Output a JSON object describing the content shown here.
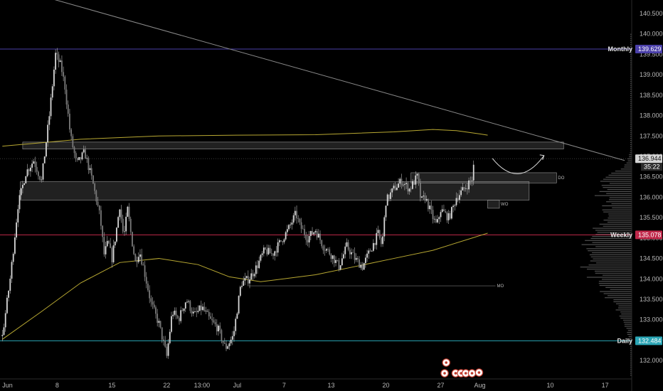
{
  "chart_data": {
    "type": "candlestick",
    "title": "",
    "y_axis": {
      "side": "right",
      "ylim": [
        131.55,
        140.83
      ],
      "ticks": [
        "140.500",
        "140.000",
        "139.500",
        "139.000",
        "138.500",
        "138.000",
        "137.500",
        "137.000",
        "136.500",
        "136.000",
        "135.500",
        "135.000",
        "134.500",
        "134.000",
        "133.500",
        "133.000",
        "132.500",
        "132.000"
      ]
    },
    "x_axis": {
      "ticks": [
        {
          "label": "Jun",
          "day": 0
        },
        {
          "label": "8",
          "day": 7
        },
        {
          "label": "15",
          "day": 14
        },
        {
          "label": "22",
          "day": 21
        },
        {
          "label": "13:00",
          "day": 25.5
        },
        {
          "label": "Jul",
          "day": 30
        },
        {
          "label": "7",
          "day": 36
        },
        {
          "label": "13",
          "day": 42
        },
        {
          "label": "20",
          "day": 49
        },
        {
          "label": "27",
          "day": 56
        },
        {
          "label": "Aug",
          "day": 61
        },
        {
          "label": "10",
          "day": 70
        },
        {
          "label": "17",
          "day": 77
        }
      ],
      "xlim": [
        -0.3,
        80.4
      ]
    },
    "price_path": [
      [
        0,
        132.6
      ],
      [
        1,
        134.0
      ],
      [
        2,
        135.8
      ],
      [
        3,
        136.6
      ],
      [
        4,
        136.9
      ],
      [
        5,
        136.4
      ],
      [
        6,
        138.0
      ],
      [
        6.8,
        139.5
      ],
      [
        7.5,
        139.2
      ],
      [
        8,
        138.7
      ],
      [
        8.7,
        137.5
      ],
      [
        9.5,
        136.8
      ],
      [
        10.5,
        137.1
      ],
      [
        11.5,
        136.4
      ],
      [
        12.5,
        135.5
      ],
      [
        13,
        134.6
      ],
      [
        13.5,
        134.9
      ],
      [
        14,
        134.5
      ],
      [
        14.5,
        135.1
      ],
      [
        15,
        135.8
      ],
      [
        15.5,
        135.0
      ],
      [
        16,
        135.7
      ],
      [
        16.5,
        135.0
      ],
      [
        17,
        134.4
      ],
      [
        17.5,
        134.7
      ],
      [
        18,
        134.3
      ],
      [
        19,
        133.4
      ],
      [
        20,
        132.9
      ],
      [
        21,
        132.1
      ],
      [
        21.7,
        133.2
      ],
      [
        22.5,
        133.0
      ],
      [
        23.5,
        133.5
      ],
      [
        24.5,
        133.1
      ],
      [
        25.5,
        133.3
      ],
      [
        26.5,
        133.0
      ],
      [
        27.5,
        132.8
      ],
      [
        28.5,
        132.3
      ],
      [
        29.5,
        132.6
      ],
      [
        30.5,
        133.9
      ],
      [
        31.5,
        134.0
      ],
      [
        32.5,
        134.3
      ],
      [
        33.5,
        134.7
      ],
      [
        34.5,
        134.6
      ],
      [
        35.5,
        134.9
      ],
      [
        36.5,
        135.2
      ],
      [
        37.5,
        135.6
      ],
      [
        38,
        135.3
      ],
      [
        39,
        135.0
      ],
      [
        40,
        135.2
      ],
      [
        41,
        134.8
      ],
      [
        42,
        134.6
      ],
      [
        43,
        134.3
      ],
      [
        44,
        134.8
      ],
      [
        45,
        134.5
      ],
      [
        46,
        134.3
      ],
      [
        47,
        134.7
      ],
      [
        48,
        135.1
      ],
      [
        48.5,
        134.8
      ],
      [
        49,
        135.9
      ],
      [
        50,
        136.2
      ],
      [
        51,
        136.4
      ],
      [
        52,
        136.2
      ],
      [
        53,
        136.5
      ],
      [
        53.5,
        135.9
      ],
      [
        54,
        136.0
      ],
      [
        55,
        135.5
      ],
      [
        55.5,
        135.3
      ],
      [
        56,
        135.7
      ],
      [
        57,
        135.5
      ],
      [
        57.5,
        135.7
      ],
      [
        58,
        136.0
      ],
      [
        59,
        136.2
      ],
      [
        60,
        136.45
      ],
      [
        60.3,
        136.9
      ]
    ],
    "series": [
      {
        "type": "moving-average",
        "color": "#b8a832",
        "points": [
          [
            0,
            132.52
          ],
          [
            5,
            133.2
          ],
          [
            10,
            133.9
          ],
          [
            15,
            134.4
          ],
          [
            20,
            134.5
          ],
          [
            25,
            134.35
          ],
          [
            29,
            134.05
          ],
          [
            33,
            133.93
          ],
          [
            40,
            134.1
          ],
          [
            45,
            134.3
          ],
          [
            50,
            134.5
          ],
          [
            55,
            134.7
          ],
          [
            60,
            135.0
          ],
          [
            62,
            135.12
          ]
        ]
      },
      {
        "type": "moving-average",
        "color": "#b8a832",
        "points": [
          [
            0,
            137.25
          ],
          [
            10,
            137.42
          ],
          [
            20,
            137.5
          ],
          [
            30,
            137.52
          ],
          [
            40,
            137.53
          ],
          [
            50,
            137.6
          ],
          [
            55,
            137.66
          ],
          [
            58,
            137.63
          ],
          [
            61,
            137.55
          ],
          [
            62,
            137.52
          ]
        ]
      },
      {
        "type": "trendline",
        "color": "#8a8a8a",
        "points": [
          [
            0,
            141.2
          ],
          [
            79.5,
            136.9
          ]
        ]
      }
    ],
    "zones": [
      {
        "name": "upper-zone",
        "x": [
          2.6,
          71.7
        ],
        "y": [
          137.18,
          137.35
        ]
      },
      {
        "name": "mid-zone",
        "x": [
          2.3,
          67.3
        ],
        "y": [
          135.93,
          136.38
        ]
      },
      {
        "name": "do-zone",
        "x": [
          52.2,
          70.8
        ],
        "y": [
          136.35,
          136.6
        ],
        "label": "DO"
      },
      {
        "name": "wo-zone",
        "x": [
          62.0,
          63.5
        ],
        "y": [
          135.73,
          135.93
        ],
        "label": "WO"
      }
    ],
    "level_lines": [
      {
        "name": "monthly",
        "label": "Monthly",
        "value": "139.629",
        "color": "#4a3fa8"
      },
      {
        "name": "weekly",
        "label": "Weekly",
        "value": "135.078",
        "color": "#c0284a"
      },
      {
        "name": "daily",
        "label": "Daily",
        "value": "132.484",
        "color": "#2aa5b5"
      }
    ],
    "mo_line": {
      "label": "MO",
      "value": 133.83,
      "x": [
        31.5,
        63.0
      ]
    },
    "current_price": {
      "value": "136.944",
      "countdown": "35:22"
    },
    "projection_arrow": {
      "from": [
        62.6,
        136.95
      ],
      "to": [
        69.2,
        137.02
      ]
    },
    "volume_profile_center": 134.5,
    "events_marker_row": 131.95
  }
}
